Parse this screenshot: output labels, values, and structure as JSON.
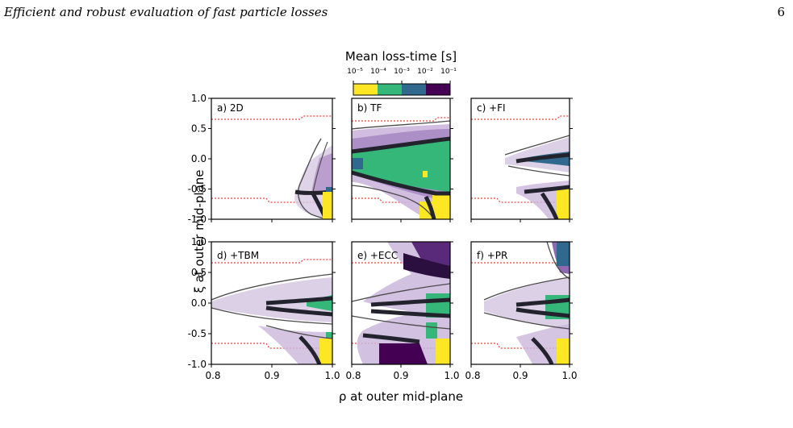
{
  "page": {
    "running_title": "Efficient and robust evaluation of fast particle losses",
    "page_number": "6"
  },
  "figure": {
    "colorbar": {
      "title": "Mean loss-time [s]",
      "ticks": [
        "10⁻⁵",
        "10⁻⁴",
        "10⁻³",
        "10⁻²",
        "10⁻¹"
      ],
      "colors": [
        "#fde725",
        "#35b779",
        "#31688e",
        "#440154"
      ]
    },
    "ylabel": "ξ at outer mid-plane",
    "xlabel": "ρ at outer mid-plane",
    "xticks": [
      "0.8",
      "0.9",
      "1.0"
    ],
    "yticks": [
      "1.0",
      "0.5",
      "0.0",
      "-0.5",
      "-1.0"
    ],
    "panels": [
      {
        "label": "a) 2D"
      },
      {
        "label": "b) TF"
      },
      {
        "label": "c) +FI"
      },
      {
        "label": "d) +TBM"
      },
      {
        "label": "e) +ECC"
      },
      {
        "label": "f) +PR"
      }
    ]
  }
}
